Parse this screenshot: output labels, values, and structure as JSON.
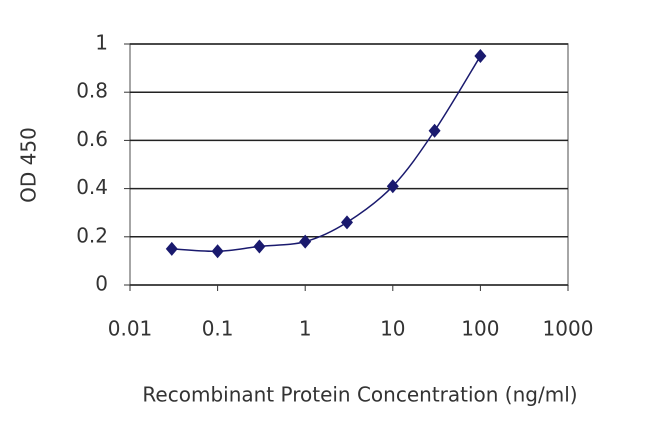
{
  "chart_data": {
    "type": "line",
    "x_label": "Recombinant Protein Concentration (ng/ml)",
    "y_label": "OD 450",
    "x_log": true,
    "grid": true,
    "series": [
      {
        "color": "#1a1a6e",
        "x": [
          0.03,
          0.1,
          0.3,
          1,
          3,
          10,
          30,
          100
        ],
        "values": [
          0.15,
          0.14,
          0.16,
          0.18,
          0.26,
          0.41,
          0.64,
          0.95
        ]
      }
    ],
    "xlim": [
      0.01,
      1000
    ],
    "xticks": [
      0.01,
      0.1,
      1,
      10,
      100,
      1000
    ],
    "ylim": [
      0,
      1
    ],
    "yticks": [
      0,
      0.2,
      0.4,
      0.6,
      0.8,
      1
    ]
  }
}
